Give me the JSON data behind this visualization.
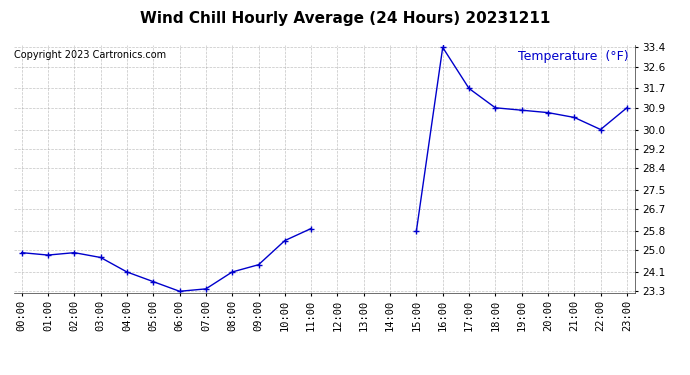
{
  "title": "Wind Chill Hourly Average (24 Hours) 20231211",
  "ylabel": "Temperature  (°F)",
  "copyright": "Copyright 2023 Cartronics.com",
  "background_color": "#ffffff",
  "line_color": "#0000cc",
  "ylabel_color": "#0000cc",
  "hours": [
    0,
    1,
    2,
    3,
    4,
    5,
    6,
    7,
    8,
    9,
    10,
    11,
    15,
    16,
    17,
    18,
    19,
    20,
    21,
    22,
    23
  ],
  "values": [
    24.9,
    24.8,
    24.9,
    24.7,
    24.1,
    23.7,
    23.3,
    23.4,
    24.1,
    24.4,
    25.4,
    25.9,
    25.8,
    33.4,
    31.7,
    30.9,
    30.8,
    30.7,
    30.5,
    30.0,
    30.9
  ],
  "ylim_min": 23.3,
  "ylim_max": 33.4,
  "yticks": [
    23.3,
    24.1,
    25.0,
    25.8,
    26.7,
    27.5,
    28.4,
    29.2,
    30.0,
    30.9,
    31.7,
    32.6,
    33.4
  ],
  "grid_color": "#aaaaaa",
  "title_fontsize": 11,
  "tick_fontsize": 7.5,
  "ylabel_fontsize": 9,
  "copyright_fontsize": 7
}
